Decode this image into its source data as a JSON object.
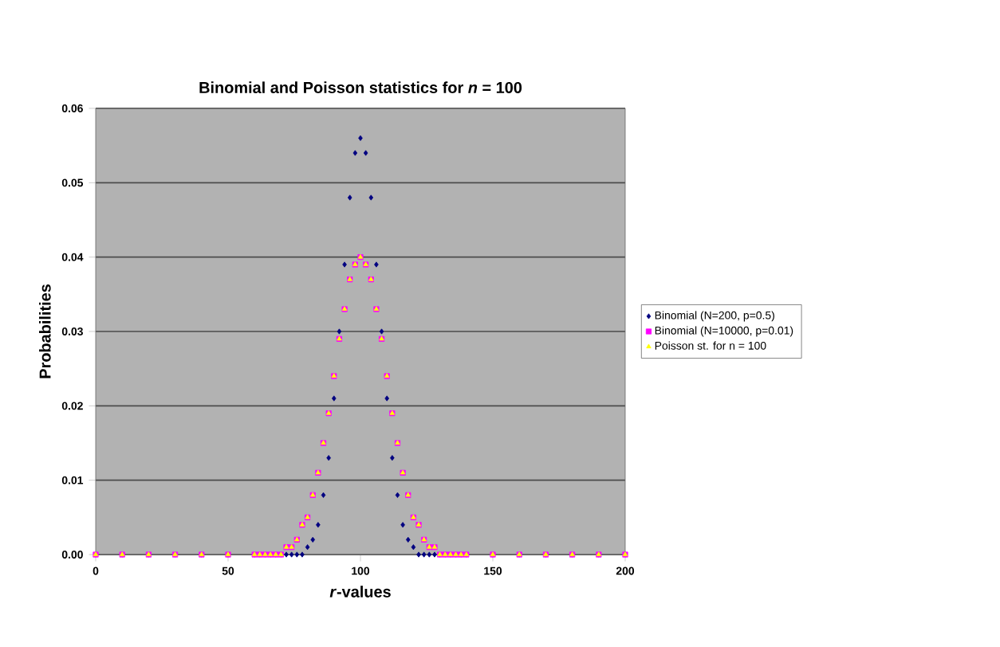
{
  "chart_data": {
    "type": "scatter",
    "title": "Binomial and Poisson statistics for   *n* = 100",
    "xlabel": "*r*-values",
    "ylabel": "Probabilities",
    "x": [
      0,
      10,
      20,
      30,
      40,
      50,
      60,
      62,
      64,
      66,
      68,
      70,
      72,
      74,
      76,
      78,
      80,
      82,
      84,
      86,
      88,
      90,
      92,
      94,
      96,
      98,
      100,
      102,
      104,
      106,
      108,
      110,
      112,
      114,
      116,
      118,
      120,
      122,
      124,
      126,
      128,
      130,
      132,
      134,
      136,
      138,
      140,
      150,
      160,
      170,
      180,
      190,
      200
    ],
    "series": [
      {
        "name": "Binomial (N=200, p=0.5)",
        "color": "#000080",
        "marker": "diamond",
        "values": [
          0,
          0,
          0,
          0,
          0,
          0,
          0,
          0,
          0,
          0,
          0,
          0,
          0,
          0,
          0,
          0,
          0.001,
          0.002,
          0.004,
          0.008,
          0.013,
          0.021,
          0.03,
          0.039,
          0.048,
          0.054,
          0.056,
          0.054,
          0.048,
          0.039,
          0.03,
          0.021,
          0.013,
          0.008,
          0.004,
          0.002,
          0.001,
          0,
          0,
          0,
          0,
          0,
          0,
          0,
          0,
          0,
          0,
          0,
          0,
          0,
          0,
          0,
          0
        ]
      },
      {
        "name": "Binomial (N=10000, p=0.01)",
        "color": "#ff00ff",
        "marker": "square",
        "values": [
          0,
          0,
          0,
          0,
          0,
          0,
          0,
          0,
          0,
          0,
          0,
          0,
          0.001,
          0.001,
          0.002,
          0.004,
          0.005,
          0.008,
          0.011,
          0.015,
          0.019,
          0.024,
          0.029,
          0.033,
          0.037,
          0.039,
          0.04,
          0.039,
          0.037,
          0.033,
          0.029,
          0.024,
          0.019,
          0.015,
          0.011,
          0.008,
          0.005,
          0.004,
          0.002,
          0.001,
          0.001,
          0,
          0,
          0,
          0,
          0,
          0,
          0,
          0,
          0,
          0,
          0,
          0
        ]
      },
      {
        "name": "Poisson st. for n = 100",
        "color": "#ffff00",
        "marker": "triangle",
        "values": [
          0,
          0,
          0,
          0,
          0,
          0,
          0,
          0,
          0,
          0,
          0,
          0,
          0.001,
          0.001,
          0.002,
          0.004,
          0.005,
          0.008,
          0.011,
          0.015,
          0.019,
          0.024,
          0.029,
          0.033,
          0.037,
          0.039,
          0.04,
          0.039,
          0.037,
          0.033,
          0.029,
          0.024,
          0.019,
          0.015,
          0.011,
          0.008,
          0.005,
          0.004,
          0.002,
          0.001,
          0.001,
          0,
          0,
          0,
          0,
          0,
          0,
          0,
          0,
          0,
          0,
          0,
          0
        ]
      }
    ],
    "xlim": [
      0,
      200
    ],
    "ylim": [
      0,
      0.06
    ],
    "xticks": [
      0,
      50,
      100,
      150,
      200
    ],
    "yticks": [
      {
        "value": 0,
        "label": "0.00"
      },
      {
        "value": 0.01,
        "label": "0.01"
      },
      {
        "value": 0.02,
        "label": "0.02"
      },
      {
        "value": 0.03,
        "label": "0.03"
      },
      {
        "value": 0.04,
        "label": "0.04"
      },
      {
        "value": 0.05,
        "label": "0.05"
      },
      {
        "value": 0.06,
        "label": "0.06"
      }
    ],
    "grid": "y",
    "legend": "right"
  }
}
